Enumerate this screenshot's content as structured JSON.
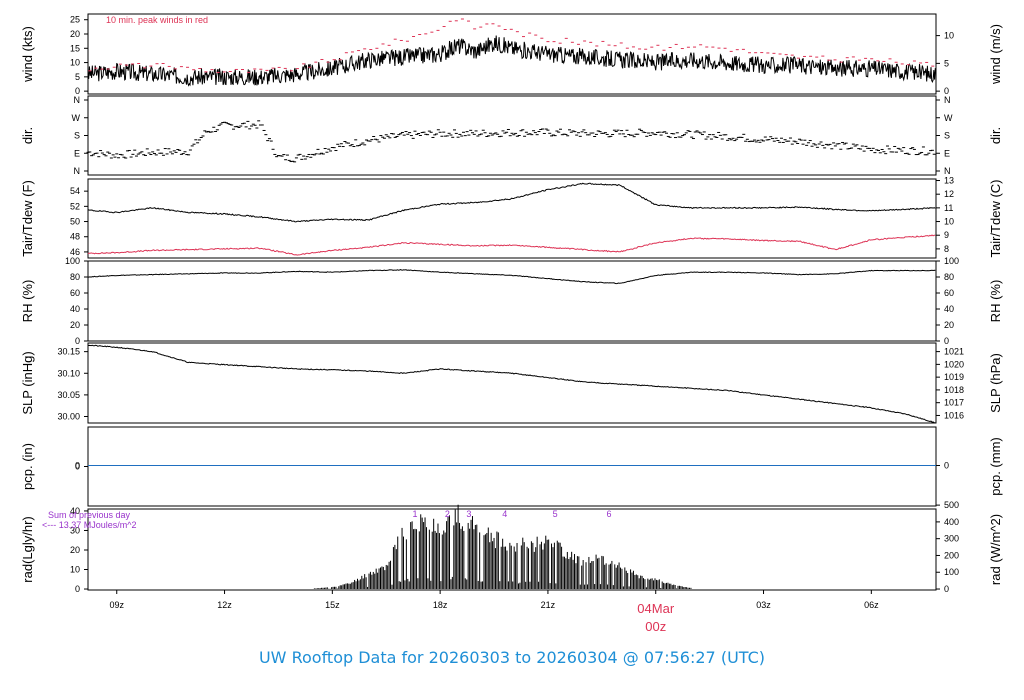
{
  "title": "UW Rooftop Data for 20260303  to  20260304 @ 07:56:27  (UTC)",
  "colors": {
    "line": "#000000",
    "dew": "#dd3355",
    "gust": "#dd3355",
    "precip": "#1f6fc0",
    "note": "#9933cc",
    "title": "#1f8fd6",
    "date_label": "#dd3355"
  },
  "chart_data": [
    {
      "type": "line",
      "panel": "wind",
      "ylabel_left": "wind (kts)",
      "ylabel_right": "wind (m/s)",
      "yticks_left": [
        0,
        5,
        10,
        15,
        20,
        25
      ],
      "yticks_right": [
        0,
        5,
        10
      ],
      "ylim": [
        -1,
        27
      ],
      "annotation": "10 min. peak winds in red",
      "series": [
        {
          "role": "wind_speed",
          "x": [
            8.2,
            9,
            10,
            11,
            12,
            13,
            14,
            15,
            16,
            17,
            18,
            18.5,
            19,
            19.5,
            20,
            21,
            22,
            23,
            24,
            25,
            26,
            27,
            28,
            29,
            30,
            31.8
          ],
          "values": [
            6,
            7,
            6,
            5,
            5,
            5,
            6,
            8,
            11,
            12,
            13,
            16,
            14,
            17,
            15,
            13,
            12,
            11,
            10,
            11,
            10,
            9,
            9,
            8,
            8,
            6
          ]
        },
        {
          "role": "peak_gust",
          "x": [
            8.2,
            9,
            10,
            11,
            12,
            13,
            14,
            15,
            16,
            17,
            18,
            18.5,
            19,
            19.5,
            20,
            21,
            22,
            23,
            24,
            25,
            26,
            27,
            28,
            29,
            30,
            31.8
          ],
          "values": [
            8,
            9,
            9,
            8,
            7,
            7,
            8,
            11,
            15,
            18,
            22,
            26,
            22,
            24,
            21,
            18,
            17,
            16,
            15,
            16,
            15,
            13,
            12,
            11,
            11,
            9
          ]
        }
      ]
    },
    {
      "type": "scatter",
      "panel": "dir",
      "ylabel_left": "dir.",
      "ylabel_right": "dir.",
      "yticks_left": [
        "N",
        "E",
        "S",
        "W",
        "N"
      ],
      "ylim": [
        0,
        360
      ],
      "series": [
        {
          "role": "direction_deg",
          "x": [
            8.2,
            9,
            10,
            11,
            11.5,
            12,
            13,
            13.5,
            14,
            15,
            16,
            17,
            18,
            19,
            20,
            21,
            22,
            23,
            24,
            25,
            26,
            27,
            28,
            29,
            30,
            31.8
          ],
          "values": [
            95,
            80,
            95,
            100,
            200,
            230,
            235,
            70,
            65,
            120,
            155,
            180,
            190,
            190,
            195,
            195,
            190,
            190,
            195,
            185,
            175,
            160,
            150,
            130,
            110,
            100
          ]
        }
      ]
    },
    {
      "type": "line",
      "panel": "temp",
      "ylabel_left": "Tair/Tdew (F)",
      "ylabel_right": "Tair/Tdew (C)",
      "yticks_left": [
        46,
        48,
        50,
        52,
        54
      ],
      "yticks_right": [
        8,
        9,
        10,
        11,
        12,
        13
      ],
      "ylim": [
        45.2,
        55.6
      ],
      "series": [
        {
          "role": "air_temp",
          "x": [
            8.2,
            9,
            10,
            11,
            12,
            13,
            14,
            15,
            16,
            17,
            18,
            19,
            20,
            21,
            22,
            23,
            24,
            25,
            26,
            27,
            28,
            29,
            30,
            31.8
          ],
          "values": [
            51.5,
            51.2,
            51.8,
            51.2,
            51.0,
            50.6,
            50.0,
            50.3,
            50.2,
            51.5,
            52.3,
            52.5,
            53.0,
            54.2,
            55.0,
            54.8,
            52.2,
            51.8,
            51.8,
            51.8,
            51.9,
            51.6,
            51.4,
            51.8
          ]
        },
        {
          "role": "dew_point",
          "x": [
            8.2,
            9,
            10,
            11,
            12,
            13,
            14,
            15,
            16,
            17,
            18,
            19,
            20,
            21,
            22,
            23,
            24,
            25,
            26,
            27,
            28,
            29,
            30,
            31.8
          ],
          "values": [
            45.8,
            45.9,
            46.2,
            46.3,
            46.4,
            46.5,
            45.6,
            46.2,
            46.6,
            47.2,
            47.0,
            46.8,
            46.9,
            46.6,
            46.3,
            46.0,
            47.2,
            47.8,
            47.7,
            47.5,
            47.4,
            46.3,
            47.6,
            48.2
          ]
        }
      ]
    },
    {
      "type": "line",
      "panel": "rh",
      "ylabel_left": "RH (%)",
      "ylabel_right": "RH (%)",
      "yticks_left": [
        0,
        20,
        40,
        60,
        80,
        100
      ],
      "ylim": [
        0,
        100
      ],
      "series": [
        {
          "role": "humidity",
          "x": [
            8.2,
            9,
            10,
            11,
            12,
            13,
            14,
            15,
            16,
            17,
            18,
            19,
            20,
            21,
            22,
            23,
            24,
            25,
            26,
            27,
            28,
            29,
            30,
            31.8
          ],
          "values": [
            80,
            82,
            83,
            84,
            85,
            85,
            87,
            86,
            88,
            89,
            86,
            84,
            82,
            78,
            74,
            72,
            82,
            86,
            86,
            85,
            83,
            84,
            88,
            88
          ]
        }
      ]
    },
    {
      "type": "line",
      "panel": "pressure",
      "ylabel_left": "SLP (inHg)",
      "ylabel_right": "SLP (hPa)",
      "yticks_left": [
        30.0,
        30.05,
        30.1,
        30.15
      ],
      "yticks_left_labels": [
        "30.00",
        "30.05",
        "30.10",
        "30.15"
      ],
      "yticks_right": [
        1016,
        1017,
        1018,
        1019,
        1020,
        1021
      ],
      "ylim": [
        29.985,
        30.17
      ],
      "series": [
        {
          "role": "sea_level_pressure",
          "x": [
            8.2,
            9,
            10,
            11,
            12,
            13,
            14,
            15,
            16,
            17,
            18,
            19,
            20,
            21,
            22,
            23,
            24,
            25,
            26,
            27,
            28,
            29,
            30,
            31,
            31.8
          ],
          "values": [
            30.165,
            30.16,
            30.15,
            30.125,
            30.12,
            30.115,
            30.11,
            30.108,
            30.105,
            30.1,
            30.11,
            30.105,
            30.1,
            30.09,
            30.08,
            30.075,
            30.07,
            30.065,
            30.06,
            30.05,
            30.04,
            30.03,
            30.02,
            30.005,
            29.985
          ]
        }
      ]
    },
    {
      "type": "line",
      "panel": "precip",
      "ylabel_left": "pcp. (in)",
      "ylabel_right": "pcp. (mm)",
      "yticks_left": [
        0
      ],
      "yticks_right": [
        0
      ],
      "series": [
        {
          "role": "precipitation",
          "x": [
            8.2,
            31.8
          ],
          "values": [
            0,
            0
          ]
        }
      ]
    },
    {
      "type": "bar",
      "panel": "radiation",
      "ylabel_left": "rad(Lgly/hr)",
      "ylabel_right": "rad (W/m^2)",
      "yticks_left": [
        0,
        10,
        20,
        30,
        40
      ],
      "yticks_right": [
        0,
        100,
        200,
        300,
        400,
        500
      ],
      "ylim": [
        -0.5,
        41
      ],
      "note_line1": "Sum of previous day",
      "note_line2": "<--- 13.37 MJoules/m^2",
      "marker_labels": [
        "1",
        "2",
        "3",
        "4",
        "5",
        "6"
      ],
      "marker_x": [
        17.3,
        18.2,
        18.8,
        19.8,
        21.2,
        22.7
      ],
      "series": [
        {
          "role": "solar_radiation",
          "x": [
            14.5,
            15,
            15.5,
            16,
            16.5,
            17,
            17.5,
            18,
            18.5,
            19,
            19.5,
            20,
            20.5,
            21,
            21.5,
            22,
            22.5,
            23,
            23.5,
            24,
            24.5,
            25
          ],
          "values": [
            0.3,
            1,
            3,
            8,
            12,
            30,
            35,
            33,
            38,
            32,
            26,
            24,
            23,
            26,
            19,
            14,
            16,
            12,
            7,
            5,
            2,
            0.5
          ]
        }
      ]
    }
  ],
  "x_axis": {
    "tick_labels": [
      "09z",
      "12z",
      "15z",
      "18z",
      "21z",
      "00z",
      "03z",
      "06z"
    ],
    "tick_hours": [
      9,
      12,
      15,
      18,
      21,
      24,
      27,
      30
    ],
    "date_label": "04Mar",
    "date_hour": 24
  }
}
